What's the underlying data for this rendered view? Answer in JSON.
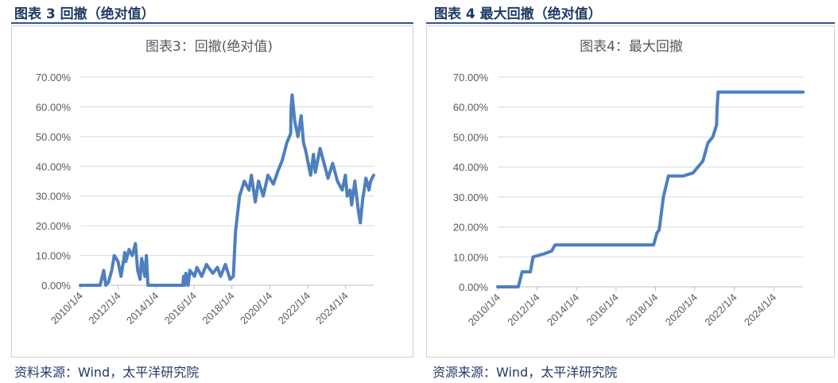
{
  "panels": [
    {
      "heading": "图表 3 回撤（绝对值）",
      "source": "资料来源：Wind，太平洋研究院"
    },
    {
      "heading": "图表 4 最大回撤（绝对值）",
      "source": "资源来源：Wind，太平洋研究院"
    }
  ],
  "colors": {
    "series": "#4e7fbf",
    "grid": "#d9d9d9",
    "heading": "#1f3b66",
    "rule": "#2f5597"
  },
  "chart_data": [
    {
      "type": "line",
      "title": "图表3：回撤(绝对值)",
      "x_tick_labels": [
        "2010/1/4",
        "2012/1/4",
        "2014/1/4",
        "2016/1/4",
        "2018/1/4",
        "2020/1/4",
        "2022/1/4",
        "2024/1/4"
      ],
      "y_tick_labels": [
        "0.00%",
        "10.00%",
        "20.00%",
        "30.00%",
        "40.00%",
        "50.00%",
        "60.00%",
        "70.00%"
      ],
      "ylim": [
        0,
        70
      ],
      "xlim": [
        "2010-01-04",
        "2025-06-30"
      ],
      "grid": "horizontal",
      "series": [
        {
          "x": [
            "2010-01-04",
            "2010-12-01",
            "2011-01-20",
            "2011-04-01",
            "2011-05-10",
            "2011-07-01",
            "2011-09-01",
            "2011-10-20",
            "2012-01-01",
            "2012-03-01",
            "2012-05-10",
            "2012-06-01",
            "2012-08-01",
            "2012-10-01",
            "2012-12-01",
            "2013-01-15",
            "2013-03-01",
            "2013-04-01",
            "2013-06-01",
            "2013-07-01",
            "2013-08-01",
            "2014-01-01",
            "2015-01-01",
            "2015-06-01",
            "2015-06-20",
            "2015-07-10",
            "2015-08-01",
            "2015-08-20",
            "2015-09-15",
            "2015-10-15",
            "2016-01-15",
            "2016-03-01",
            "2016-06-01",
            "2016-09-01",
            "2017-01-01",
            "2017-04-01",
            "2017-06-01",
            "2017-09-01",
            "2017-12-01",
            "2018-02-01",
            "2018-03-15",
            "2018-06-01",
            "2018-09-01",
            "2018-12-01",
            "2019-01-15",
            "2019-04-01",
            "2019-06-01",
            "2019-09-01",
            "2019-12-01",
            "2020-03-15",
            "2020-06-01",
            "2020-09-01",
            "2020-12-01",
            "2021-02-10",
            "2021-02-20",
            "2021-03-10",
            "2021-05-01",
            "2021-07-01",
            "2021-09-01",
            "2021-10-15",
            "2021-12-01",
            "2022-03-01",
            "2022-04-26",
            "2022-06-01",
            "2022-09-01",
            "2022-12-01",
            "2023-02-01",
            "2023-05-01",
            "2023-08-01",
            "2023-11-01",
            "2024-01-01",
            "2024-02-05",
            "2024-04-01",
            "2024-05-01",
            "2024-07-01",
            "2024-09-01",
            "2024-09-25",
            "2024-10-15",
            "2024-12-01",
            "2025-02-01",
            "2025-04-01",
            "2025-05-01",
            "2025-06-30"
          ],
          "values": [
            0,
            0,
            0,
            5,
            0,
            1,
            5,
            10,
            8,
            3,
            11,
            8,
            12,
            10,
            14,
            5,
            2,
            9,
            3,
            10,
            0,
            0,
            0,
            0,
            3,
            0,
            4,
            1,
            0,
            5,
            3,
            6,
            3,
            7,
            4,
            6,
            3,
            7,
            2,
            3,
            18,
            30,
            35,
            32,
            37,
            28,
            35,
            30,
            37,
            34,
            38,
            42,
            48,
            51,
            60,
            64,
            55,
            50,
            57,
            48,
            45,
            37,
            44,
            38,
            46,
            40,
            36,
            41,
            35,
            32,
            37,
            30,
            32,
            27,
            35,
            26,
            23,
            21,
            29,
            36,
            32,
            35,
            37
          ]
        }
      ]
    },
    {
      "type": "line",
      "title": "图表4：最大回撤",
      "x_tick_labels": [
        "2010/1/4",
        "2012/1/4",
        "2014/1/4",
        "2016/1/4",
        "2018/1/4",
        "2020/1/4",
        "2022/1/4",
        "2024/1/4"
      ],
      "y_tick_labels": [
        "0.00%",
        "10.00%",
        "20.00%",
        "30.00%",
        "40.00%",
        "50.00%",
        "60.00%",
        "70.00%"
      ],
      "ylim": [
        0,
        70
      ],
      "xlim": [
        "2010-01-04",
        "2025-06-30"
      ],
      "grid": "horizontal",
      "series": [
        {
          "x": [
            "2010-01-04",
            "2010-12-01",
            "2011-01-20",
            "2011-04-01",
            "2011-09-01",
            "2011-10-20",
            "2012-05-10",
            "2012-10-01",
            "2012-12-01",
            "2017-12-01",
            "2018-02-01",
            "2018-03-15",
            "2018-06-01",
            "2018-09-01",
            "2019-06-01",
            "2019-09-01",
            "2019-12-01",
            "2020-06-01",
            "2020-09-01",
            "2020-12-01",
            "2021-02-10",
            "2021-02-20",
            "2021-03-10",
            "2025-06-30"
          ],
          "values": [
            0,
            0,
            0,
            5,
            5,
            10,
            11,
            12,
            14,
            14,
            18,
            19,
            30,
            37,
            37,
            37.5,
            38,
            42,
            48,
            50,
            54,
            60,
            65,
            65
          ]
        }
      ]
    }
  ]
}
